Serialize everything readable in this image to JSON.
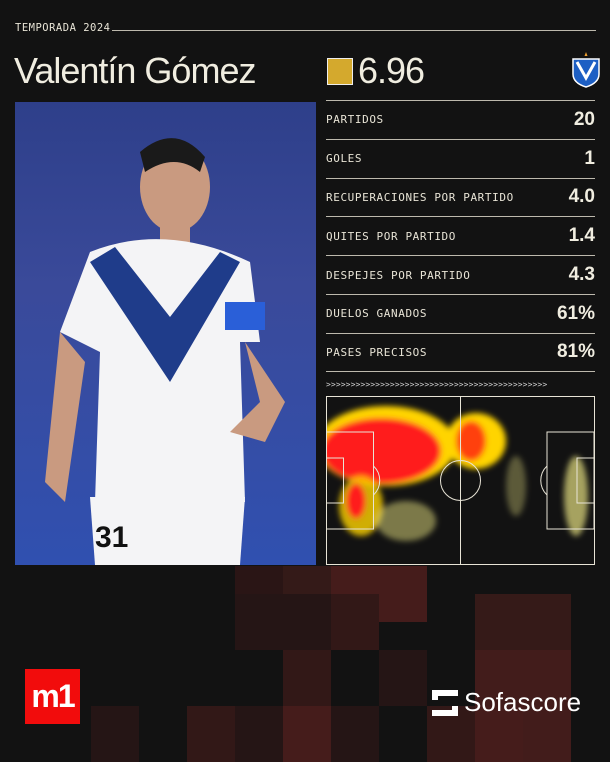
{
  "header": {
    "season": "TEMPORADA 2024",
    "player_name": "Valentín Gómez",
    "rating": "6.96",
    "rating_color": "#d4a92d",
    "club_crest_icon": "velez-sarsfield-crest"
  },
  "stats": [
    {
      "label": "PARTIDOS",
      "value": "20"
    },
    {
      "label": "GOLES",
      "value": "1"
    },
    {
      "label": "RECUPERACIONES POR PARTIDO",
      "value": "4.0"
    },
    {
      "label": "QUITES POR PARTIDO",
      "value": "1.4"
    },
    {
      "label": "DESPEJES POR PARTIDO",
      "value": "4.3"
    },
    {
      "label": "DUELOS GANADOS",
      "value": "61%"
    },
    {
      "label": "PASES PRECISOS",
      "value": "81%"
    }
  ],
  "heatmap": {
    "direction_arrows": ">>>>>>>>>>>>>>>>>>>>>>>>>>>>>>>>>>>>>>>>>>>>>",
    "colors": [
      "#ff1a1a",
      "#ffd400",
      "#e6e080"
    ]
  },
  "footer": {
    "brand_left": "m1",
    "brand_right": "Sofascore",
    "brand_left_color": "#f20c0c"
  }
}
